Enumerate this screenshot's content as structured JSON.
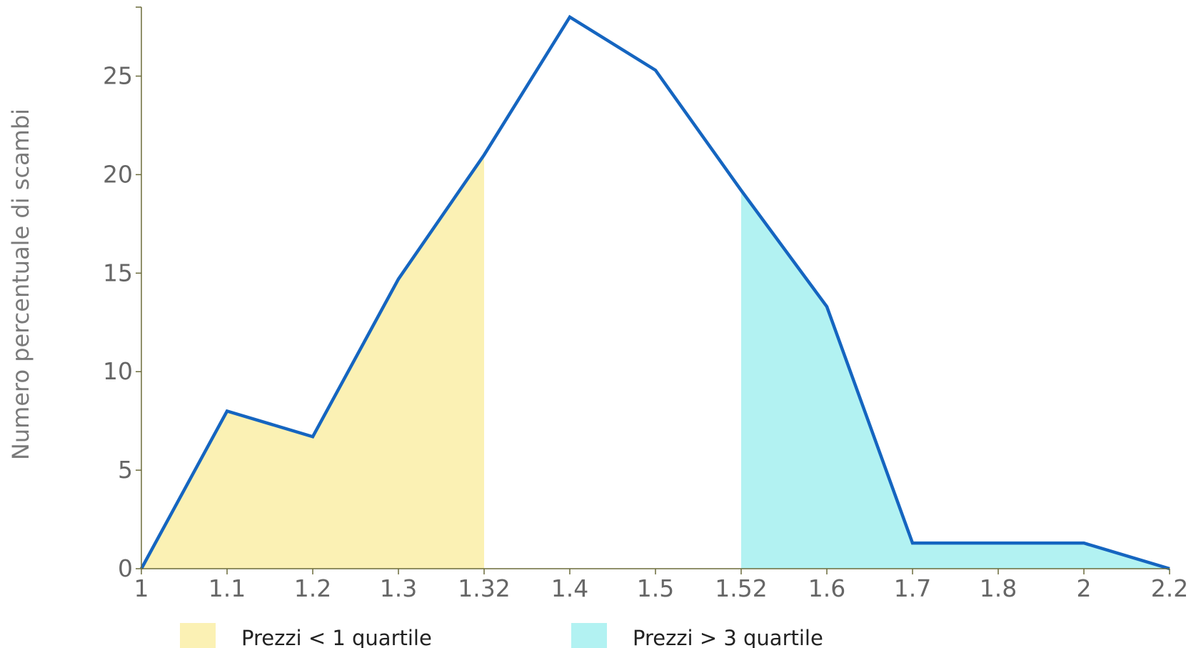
{
  "chart_data": {
    "type": "area",
    "title": "",
    "xlabel": "",
    "ylabel": "Numero percentuale di scambi",
    "x_ticks": [
      "1",
      "1.1",
      "1.2",
      "1.3",
      "1.32",
      "1.4",
      "1.5",
      "1.52",
      "1.6",
      "1.7",
      "1.8",
      "2",
      "2.2"
    ],
    "y_ticks": [
      "0",
      "5",
      "10",
      "15",
      "20",
      "25"
    ],
    "ylim": [
      0,
      28.5
    ],
    "x_axis_scale": "categorical (evenly spaced tick labels)",
    "series": [
      {
        "values": [
          0,
          8.0,
          6.7,
          14.7,
          21.0,
          28.0,
          25.3,
          19.2,
          13.3,
          1.3,
          1.3,
          1.3,
          0
        ],
        "color": "#1565c0"
      }
    ],
    "shaded_regions": [
      {
        "label": "Prezzi < 1 quartile",
        "from": "1",
        "to": "1.32",
        "color": "#fbf1b4"
      },
      {
        "label": "Prezzi > 3 quartile",
        "from": "1.52",
        "to": "2.2",
        "color": "#b2f2f2"
      }
    ],
    "legend": {
      "placement": "bottom",
      "items": [
        {
          "label": "Prezzi < 1 quartile",
          "color": "#fbf1b4"
        },
        {
          "label": "Prezzi > 3 quartile",
          "color": "#b2f2f2"
        }
      ]
    },
    "grid": false,
    "axis_color": "#6b6b3a"
  }
}
